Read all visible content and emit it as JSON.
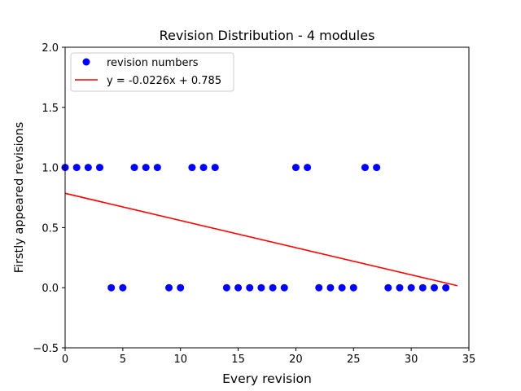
{
  "chart_data": {
    "type": "scatter",
    "title": "Revision Distribution - 4 modules",
    "xlabel": "Every revision",
    "ylabel": "Firstly appeared revisions",
    "xlim": [
      0,
      35
    ],
    "ylim": [
      -0.5,
      2.0
    ],
    "xticks": [
      "0",
      "5",
      "10",
      "15",
      "20",
      "25",
      "30",
      "35"
    ],
    "yticks": [
      "−0.5",
      "0.0",
      "0.5",
      "1.0",
      "1.5",
      "2.0"
    ],
    "grid": false,
    "legend_position": "upper-left",
    "series": [
      {
        "name": "revision numbers",
        "kind": "scatter",
        "color": "#0000ff",
        "x": [
          0,
          1,
          2,
          3,
          4,
          5,
          6,
          7,
          8,
          9,
          10,
          11,
          12,
          13,
          14,
          15,
          16,
          17,
          18,
          19,
          20,
          21,
          22,
          23,
          24,
          25,
          26,
          27,
          28,
          29,
          30,
          31,
          32,
          33
        ],
        "y": [
          1,
          1,
          1,
          1,
          0,
          0,
          1,
          1,
          1,
          0,
          0,
          1,
          1,
          1,
          0,
          0,
          0,
          0,
          0,
          0,
          1,
          1,
          0,
          0,
          0,
          0,
          1,
          1,
          0,
          0,
          0,
          0,
          0,
          0
        ]
      },
      {
        "name": "y = -0.0226x + 0.785",
        "kind": "line",
        "color": "#ff0000",
        "x": [
          0,
          34
        ],
        "y": [
          0.785,
          0.0166
        ]
      }
    ]
  }
}
